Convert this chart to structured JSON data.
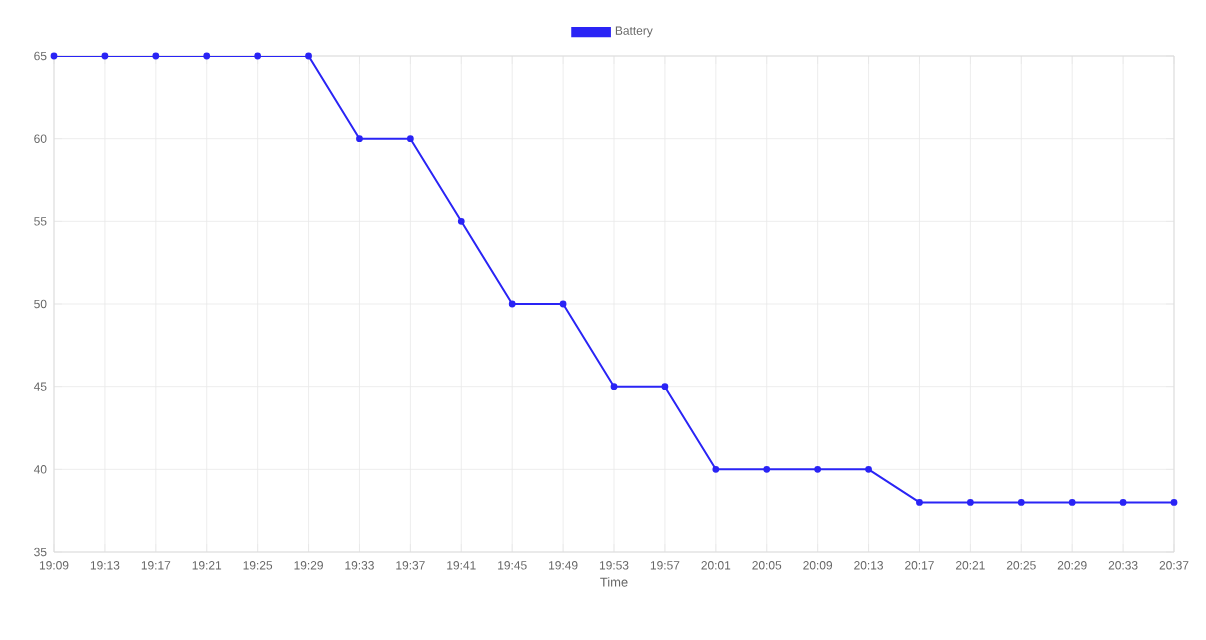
{
  "chart_data": {
    "type": "line",
    "xlabel": "Time",
    "categories": [
      "19:09",
      "19:13",
      "19:17",
      "19:21",
      "19:25",
      "19:29",
      "19:33",
      "19:37",
      "19:41",
      "19:45",
      "19:49",
      "19:53",
      "19:57",
      "20:01",
      "20:05",
      "20:09",
      "20:13",
      "20:17",
      "20:21",
      "20:25",
      "20:29",
      "20:33",
      "20:37"
    ],
    "series": [
      {
        "name": "Battery",
        "color": "#2a24f5",
        "values": [
          65,
          65,
          65,
          65,
          65,
          65,
          60,
          60,
          55,
          50,
          50,
          45,
          45,
          40,
          40,
          40,
          40,
          38,
          38,
          38,
          38,
          38,
          38
        ]
      }
    ],
    "ylim": [
      35,
      65
    ],
    "yticks": [
      35,
      40,
      45,
      50,
      55,
      60,
      65
    ],
    "grid": true,
    "legend": "top",
    "marker": "circle",
    "line_style": "solid"
  }
}
